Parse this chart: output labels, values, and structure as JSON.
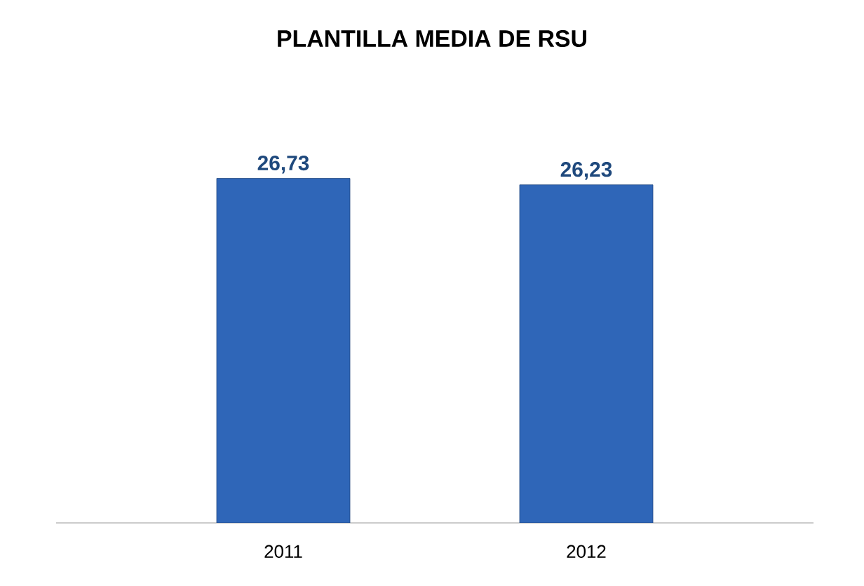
{
  "chart_data": {
    "type": "bar",
    "title": "PLANTILLA MEDIA DE RSU",
    "categories": [
      "2011",
      "2012"
    ],
    "values": [
      26.73,
      26.23
    ],
    "value_labels": [
      "26,73",
      "26,23"
    ],
    "color": "#2f66b8"
  }
}
